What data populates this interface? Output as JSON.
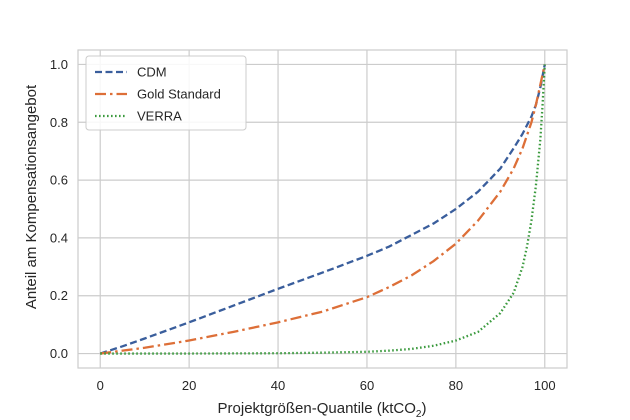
{
  "chart_data": {
    "type": "line",
    "xlabel": "Projektgrößen-Quantile (ktCO",
    "xlabel_sub": "2",
    "xlabel_end": ")",
    "ylabel": "Anteil am Kompensationsangebot",
    "xlim": [
      -5,
      105
    ],
    "ylim": [
      -0.05,
      1.05
    ],
    "xticks": [
      0,
      20,
      40,
      60,
      80,
      100
    ],
    "xtick_labels": [
      "0",
      "20",
      "40",
      "60",
      "80",
      "100"
    ],
    "yticks": [
      0.0,
      0.2,
      0.4,
      0.6,
      0.8,
      1.0
    ],
    "ytick_labels": [
      "0.0",
      "0.2",
      "0.4",
      "0.6",
      "0.8",
      "1.0"
    ],
    "grid": true,
    "legend_position": "top-left",
    "series": [
      {
        "name": "CDM",
        "color": "#3a5e9c",
        "style": "dashed",
        "x": [
          0,
          5,
          10,
          20,
          30,
          40,
          50,
          60,
          65,
          70,
          75,
          80,
          85,
          90,
          93,
          95,
          97,
          98,
          99,
          100
        ],
        "y": [
          0.0,
          0.025,
          0.052,
          0.108,
          0.166,
          0.224,
          0.28,
          0.338,
          0.37,
          0.41,
          0.45,
          0.5,
          0.56,
          0.64,
          0.71,
          0.76,
          0.82,
          0.86,
          0.92,
          1.0
        ]
      },
      {
        "name": "Gold Standard",
        "color": "#dd6f38",
        "style": "dashdot",
        "x": [
          0,
          10,
          20,
          30,
          40,
          50,
          60,
          65,
          70,
          75,
          80,
          85,
          90,
          93,
          95,
          97,
          98,
          99,
          100
        ],
        "y": [
          0.0,
          0.02,
          0.045,
          0.075,
          0.108,
          0.145,
          0.195,
          0.23,
          0.27,
          0.32,
          0.38,
          0.46,
          0.56,
          0.64,
          0.71,
          0.8,
          0.86,
          0.93,
          1.0
        ]
      },
      {
        "name": "VERRA",
        "color": "#3b9a3e",
        "style": "dotted",
        "x": [
          0,
          20,
          40,
          50,
          60,
          65,
          70,
          75,
          80,
          85,
          90,
          93,
          95,
          96,
          97,
          98,
          99,
          99.5,
          100
        ],
        "y": [
          0.0,
          0.0,
          0.001,
          0.003,
          0.006,
          0.01,
          0.016,
          0.027,
          0.045,
          0.075,
          0.14,
          0.21,
          0.3,
          0.37,
          0.46,
          0.58,
          0.74,
          0.86,
          1.0
        ]
      }
    ]
  }
}
